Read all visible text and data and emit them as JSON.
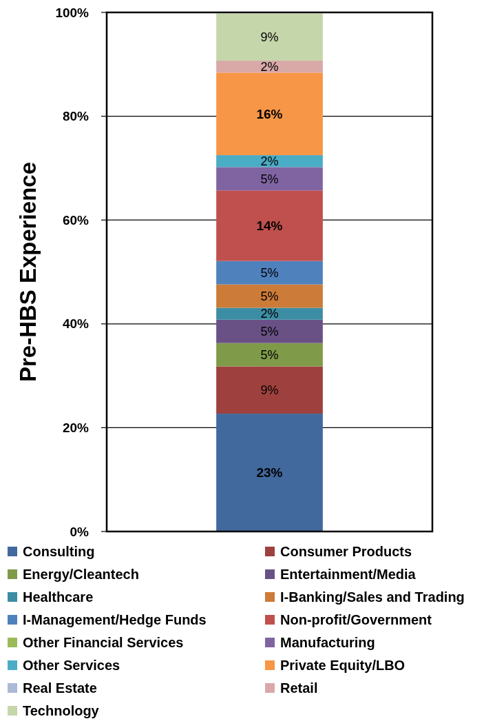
{
  "chart_data": {
    "type": "bar",
    "stacked": true,
    "ylabel": "Pre-HBS Experience",
    "categories": [
      null
    ],
    "ylim": [
      0,
      100
    ],
    "yticks": [
      {
        "value": 0,
        "label": "0%"
      },
      {
        "value": 20,
        "label": "20%"
      },
      {
        "value": 40,
        "label": "40%"
      },
      {
        "value": 60,
        "label": "60%"
      },
      {
        "value": 80,
        "label": "80%"
      },
      {
        "value": 100,
        "label": "100%"
      }
    ],
    "grid": "y",
    "legend": "bottom",
    "series": [
      {
        "name": "Consulting",
        "color": "#41699d",
        "values": [
          22.7
        ],
        "value_labels": [
          "23%"
        ]
      },
      {
        "name": "Consumer Products",
        "color": "#9e413e",
        "values": [
          9.1
        ],
        "value_labels": [
          "9%"
        ]
      },
      {
        "name": "Energy/Cleantech",
        "color": "#7f9a48",
        "values": [
          4.5
        ],
        "value_labels": [
          "5%"
        ]
      },
      {
        "name": "Entertainment/Media",
        "color": "#695185",
        "values": [
          4.5
        ],
        "value_labels": [
          "5%"
        ]
      },
      {
        "name": "Healthcare",
        "color": "#3c8da3",
        "values": [
          2.3
        ],
        "value_labels": [
          "2%"
        ]
      },
      {
        "name": "I-Banking/Sales and Trading",
        "color": "#cc7b38",
        "values": [
          4.5
        ],
        "value_labels": [
          "5%"
        ]
      },
      {
        "name": "I-Management/Hedge Funds",
        "color": "#4f81bd",
        "values": [
          4.5
        ],
        "value_labels": [
          "5%"
        ]
      },
      {
        "name": "Non-profit/Government",
        "color": "#c0504d",
        "values": [
          13.6
        ],
        "value_labels": [
          "14%"
        ]
      },
      {
        "name": "Other Financial Services",
        "color": "#9bbb59",
        "values": [
          0
        ],
        "value_labels": [
          null
        ]
      },
      {
        "name": "Manufacturing",
        "color": "#8064a2",
        "values": [
          4.5
        ],
        "value_labels": [
          "5%"
        ]
      },
      {
        "name": "Other Services",
        "color": "#4bacc6",
        "values": [
          2.3
        ],
        "value_labels": [
          "2%"
        ]
      },
      {
        "name": "Private Equity/LBO",
        "color": "#f79646",
        "values": [
          15.9
        ],
        "value_labels": [
          "16%"
        ]
      },
      {
        "name": "Real Estate",
        "color": "#aabad7",
        "values": [
          0
        ],
        "value_labels": [
          null
        ]
      },
      {
        "name": "Retail",
        "color": "#d9a9a8",
        "values": [
          2.3
        ],
        "value_labels": [
          "2%"
        ]
      },
      {
        "name": "Technology",
        "color": "#c6d6ab",
        "values": [
          9.1
        ],
        "value_labels": [
          "9%"
        ]
      }
    ]
  }
}
